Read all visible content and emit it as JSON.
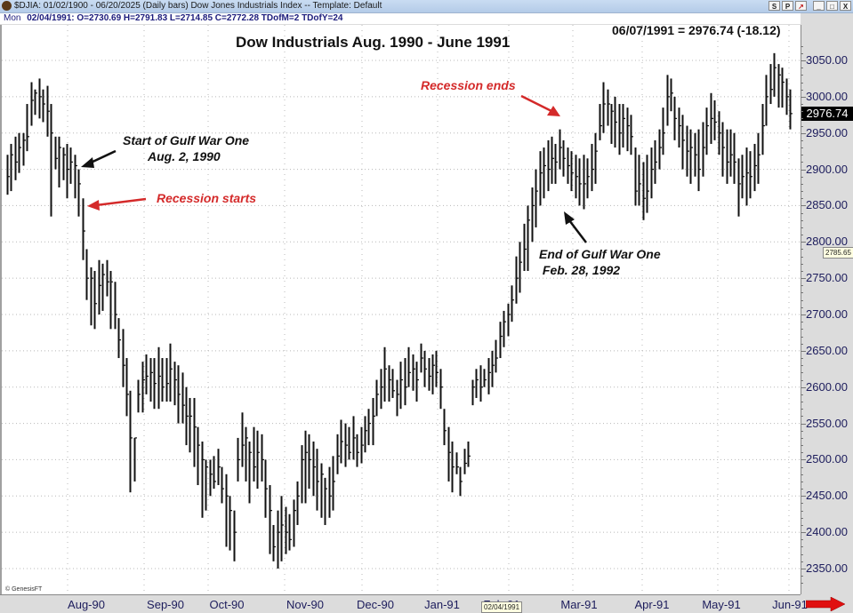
{
  "window": {
    "title": "$DJIA:  01/02/1900 - 06/20/2025  (Daily bars)   Dow Jones Industrials Index  --  Template: Default",
    "buttons": [
      "S",
      "P",
      "↗",
      "_",
      "□",
      "X"
    ]
  },
  "infobar": {
    "day": "Mon",
    "text": "02/04/1991:  O=2730.69  H=2791.83  L=2714.85  C=2772.28  TDofM=2  TDofY=24"
  },
  "chart_title": "Dow Industrials Aug. 1990 - June 1991",
  "last_info": "06/07/1991 = 2976.74 (-18.12)",
  "last_price_tag": "2976.74",
  "cursor_price_tag": "2785.65",
  "cursor_date_tag": "02/04/1991",
  "copyright": "© GenesisFT",
  "annotations": [
    {
      "id": "gulf-war-start",
      "lines": [
        "Start of Gulf War One",
        "Aug. 2, 1990"
      ],
      "color": "black"
    },
    {
      "id": "recession-starts",
      "lines": [
        "Recession starts"
      ],
      "color": "red"
    },
    {
      "id": "recession-ends",
      "lines": [
        "Recession ends"
      ],
      "color": "red"
    },
    {
      "id": "gulf-war-end",
      "lines": [
        "End of Gulf War One",
        " Feb. 28, 1992"
      ],
      "color": "black"
    }
  ],
  "colors": {
    "bars": "#111111",
    "annotation_red": "#d42a2a",
    "axis_text": "#1c1c5c",
    "last_price_bg": "#000000",
    "scroll_arrow": "#e01010"
  },
  "chart_data": {
    "type": "ohlc",
    "title": "Dow Industrials Aug. 1990 - June 1991",
    "xlabel": "",
    "ylabel": "",
    "ylim": [
      2320,
      3080
    ],
    "grid": true,
    "y_ticks": [
      3050,
      3000,
      2950,
      2900,
      2850,
      2800,
      2750,
      2700,
      2650,
      2600,
      2550,
      2500,
      2450,
      2400,
      2350
    ],
    "x_ticks": [
      "Aug-90",
      "Sep-90",
      "Oct-90",
      "Nov-90",
      "Dec-90",
      "Jan-91",
      "Feb-91",
      "Mar-91",
      "Apr-91",
      "May-91",
      "Jun-91"
    ],
    "bars_hlc": [
      [
        2920,
        2865,
        2890
      ],
      [
        2935,
        2870,
        2920
      ],
      [
        2945,
        2885,
        2910
      ],
      [
        2950,
        2895,
        2930
      ],
      [
        2950,
        2905,
        2940
      ],
      [
        2990,
        2925,
        2945
      ],
      [
        3020,
        2960,
        2995
      ],
      [
        3010,
        2975,
        3005
      ],
      [
        3025,
        2970,
        3000
      ],
      [
        3010,
        2965,
        2990
      ],
      [
        3015,
        2945,
        2980
      ],
      [
        2990,
        2835,
        2950
      ],
      [
        2945,
        2900,
        2915
      ],
      [
        2945,
        2875,
        2930
      ],
      [
        2930,
        2885,
        2920
      ],
      [
        2935,
        2860,
        2900
      ],
      [
        2930,
        2880,
        2910
      ],
      [
        2920,
        2860,
        2905
      ],
      [
        2900,
        2835,
        2880
      ],
      [
        2860,
        2775,
        2815
      ],
      [
        2790,
        2720,
        2750
      ],
      [
        2765,
        2685,
        2750
      ],
      [
        2760,
        2680,
        2715
      ],
      [
        2775,
        2700,
        2740
      ],
      [
        2770,
        2705,
        2755
      ],
      [
        2775,
        2725,
        2745
      ],
      [
        2760,
        2680,
        2745
      ],
      [
        2745,
        2680,
        2700
      ],
      [
        2695,
        2640,
        2665
      ],
      [
        2680,
        2600,
        2630
      ],
      [
        2640,
        2560,
        2590
      ],
      [
        2595,
        2455,
        2530
      ],
      [
        2530,
        2470,
        2530
      ],
      [
        2610,
        2565,
        2590
      ],
      [
        2635,
        2565,
        2610
      ],
      [
        2645,
        2590,
        2615
      ],
      [
        2640,
        2580,
        2620
      ],
      [
        2640,
        2570,
        2605
      ],
      [
        2655,
        2570,
        2615
      ],
      [
        2640,
        2580,
        2600
      ],
      [
        2640,
        2580,
        2605
      ],
      [
        2660,
        2580,
        2625
      ],
      [
        2635,
        2575,
        2610
      ],
      [
        2630,
        2550,
        2590
      ],
      [
        2620,
        2550,
        2575
      ],
      [
        2600,
        2520,
        2560
      ],
      [
        2585,
        2510,
        2560
      ],
      [
        2585,
        2490,
        2545
      ],
      [
        2545,
        2465,
        2520
      ],
      [
        2525,
        2420,
        2500
      ],
      [
        2500,
        2430,
        2490
      ],
      [
        2500,
        2450,
        2480
      ],
      [
        2505,
        2460,
        2470
      ],
      [
        2515,
        2465,
        2490
      ],
      [
        2490,
        2440,
        2460
      ],
      [
        2480,
        2380,
        2450
      ],
      [
        2450,
        2375,
        2430
      ],
      [
        2430,
        2360,
        2400
      ],
      [
        2530,
        2470,
        2500
      ],
      [
        2565,
        2490,
        2520
      ],
      [
        2545,
        2470,
        2530
      ],
      [
        2525,
        2440,
        2510
      ],
      [
        2545,
        2470,
        2490
      ],
      [
        2540,
        2460,
        2510
      ],
      [
        2535,
        2470,
        2500
      ],
      [
        2500,
        2420,
        2460
      ],
      [
        2465,
        2370,
        2430
      ],
      [
        2410,
        2360,
        2380
      ],
      [
        2430,
        2350,
        2400
      ],
      [
        2450,
        2360,
        2410
      ],
      [
        2435,
        2370,
        2400
      ],
      [
        2425,
        2375,
        2390
      ],
      [
        2445,
        2380,
        2430
      ],
      [
        2470,
        2410,
        2450
      ],
      [
        2520,
        2440,
        2500
      ],
      [
        2540,
        2440,
        2510
      ],
      [
        2535,
        2460,
        2500
      ],
      [
        2525,
        2450,
        2490
      ],
      [
        2515,
        2430,
        2470
      ],
      [
        2495,
        2420,
        2480
      ],
      [
        2475,
        2410,
        2460
      ],
      [
        2490,
        2420,
        2450
      ],
      [
        2505,
        2430,
        2470
      ],
      [
        2535,
        2480,
        2505
      ],
      [
        2555,
        2495,
        2525
      ],
      [
        2550,
        2490,
        2520
      ],
      [
        2545,
        2500,
        2510
      ],
      [
        2560,
        2500,
        2530
      ],
      [
        2535,
        2490,
        2510
      ],
      [
        2545,
        2495,
        2520
      ],
      [
        2560,
        2510,
        2540
      ],
      [
        2570,
        2520,
        2550
      ],
      [
        2585,
        2520,
        2560
      ],
      [
        2610,
        2560,
        2590
      ],
      [
        2625,
        2570,
        2600
      ],
      [
        2655,
        2580,
        2625
      ],
      [
        2630,
        2580,
        2610
      ],
      [
        2625,
        2585,
        2595
      ],
      [
        2610,
        2560,
        2590
      ],
      [
        2635,
        2570,
        2610
      ],
      [
        2640,
        2575,
        2600
      ],
      [
        2655,
        2600,
        2620
      ],
      [
        2645,
        2595,
        2625
      ],
      [
        2635,
        2580,
        2610
      ],
      [
        2660,
        2620,
        2640
      ],
      [
        2650,
        2600,
        2625
      ],
      [
        2640,
        2595,
        2615
      ],
      [
        2645,
        2590,
        2630
      ],
      [
        2650,
        2600,
        2620
      ],
      [
        2625,
        2570,
        2600
      ],
      [
        2570,
        2520,
        2540
      ],
      [
        2545,
        2470,
        2510
      ],
      [
        2525,
        2455,
        2490
      ],
      [
        2510,
        2480,
        2490
      ],
      [
        2490,
        2450,
        2470
      ],
      [
        2515,
        2480,
        2495
      ],
      [
        2525,
        2490,
        2505
      ],
      [
        2610,
        2575,
        2600
      ],
      [
        2625,
        2585,
        2610
      ],
      [
        2630,
        2580,
        2600
      ],
      [
        2625,
        2600,
        2610
      ],
      [
        2640,
        2590,
        2620
      ],
      [
        2650,
        2600,
        2630
      ],
      [
        2665,
        2620,
        2640
      ],
      [
        2690,
        2640,
        2670
      ],
      [
        2705,
        2655,
        2690
      ],
      [
        2715,
        2670,
        2700
      ],
      [
        2740,
        2690,
        2720
      ],
      [
        2780,
        2715,
        2750
      ],
      [
        2800,
        2730,
        2772
      ],
      [
        2825,
        2760,
        2790
      ],
      [
        2850,
        2760,
        2830
      ],
      [
        2875,
        2800,
        2850
      ],
      [
        2900,
        2820,
        2870
      ],
      [
        2925,
        2850,
        2895
      ],
      [
        2930,
        2860,
        2905
      ],
      [
        2940,
        2870,
        2900
      ],
      [
        2945,
        2880,
        2915
      ],
      [
        2935,
        2880,
        2910
      ],
      [
        2955,
        2900,
        2930
      ],
      [
        2940,
        2890,
        2915
      ],
      [
        2930,
        2880,
        2905
      ],
      [
        2925,
        2870,
        2895
      ],
      [
        2920,
        2860,
        2890
      ],
      [
        2915,
        2850,
        2880
      ],
      [
        2920,
        2845,
        2880
      ],
      [
        2915,
        2860,
        2890
      ],
      [
        2935,
        2870,
        2900
      ],
      [
        2950,
        2880,
        2925
      ],
      [
        2990,
        2940,
        2960
      ],
      [
        3020,
        2950,
        2990
      ],
      [
        3010,
        2960,
        2990
      ],
      [
        2990,
        2935,
        2980
      ],
      [
        3000,
        2930,
        2965
      ],
      [
        2990,
        2920,
        2950
      ],
      [
        2990,
        2930,
        2970
      ],
      [
        2985,
        2925,
        2960
      ],
      [
        2975,
        2920,
        2945
      ],
      [
        2930,
        2850,
        2870
      ],
      [
        2920,
        2850,
        2880
      ],
      [
        2910,
        2830,
        2860
      ],
      [
        2920,
        2840,
        2870
      ],
      [
        2930,
        2860,
        2900
      ],
      [
        2940,
        2880,
        2910
      ],
      [
        2955,
        2900,
        2930
      ],
      [
        2985,
        2920,
        2950
      ],
      [
        3030,
        2960,
        3000
      ],
      [
        3025,
        2980,
        3005
      ],
      [
        3000,
        2940,
        2970
      ],
      [
        2985,
        2930,
        2960
      ],
      [
        2975,
        2900,
        2940
      ],
      [
        2960,
        2890,
        2925
      ],
      [
        2955,
        2880,
        2930
      ],
      [
        2950,
        2890,
        2920
      ],
      [
        2955,
        2870,
        2900
      ],
      [
        2965,
        2890,
        2930
      ],
      [
        2985,
        2920,
        2960
      ],
      [
        3005,
        2935,
        2970
      ],
      [
        2995,
        2940,
        2965
      ],
      [
        2980,
        2920,
        2950
      ],
      [
        2965,
        2890,
        2930
      ],
      [
        2955,
        2880,
        2910
      ],
      [
        2955,
        2890,
        2920
      ],
      [
        2950,
        2880,
        2910
      ],
      [
        2915,
        2835,
        2880
      ],
      [
        2920,
        2860,
        2890
      ],
      [
        2930,
        2850,
        2895
      ],
      [
        2925,
        2860,
        2890
      ],
      [
        2935,
        2870,
        2905
      ],
      [
        2950,
        2880,
        2920
      ],
      [
        2990,
        2920,
        2960
      ],
      [
        3030,
        2960,
        3000
      ],
      [
        3045,
        2990,
        3010
      ],
      [
        3060,
        3000,
        3040
      ],
      [
        3045,
        2985,
        3030
      ],
      [
        3040,
        2985,
        3020
      ],
      [
        3025,
        2975,
        3000
      ],
      [
        3010,
        2955,
        2976.74
      ]
    ]
  }
}
